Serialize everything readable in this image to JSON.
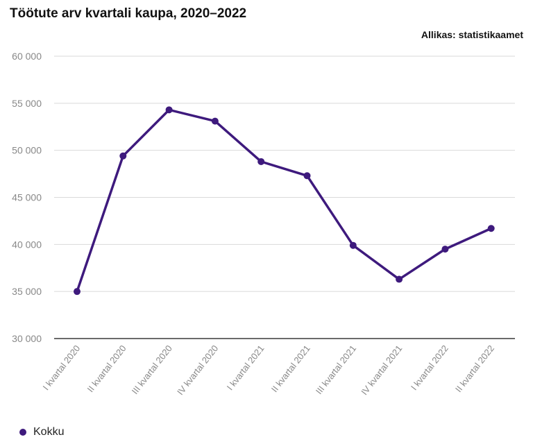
{
  "header": {
    "title": "Töötute arv kvartali kaupa, 2020–2022",
    "source": "Allikas: statistikaamet"
  },
  "colors": {
    "series": "#3e1a7d",
    "grid": "#d9d9d9",
    "axis": "#111111",
    "tick_text": "#888888"
  },
  "legend": {
    "label": "Kokku",
    "icon": "circle-marker-icon"
  },
  "chart_data": {
    "type": "line",
    "title": "Töötute arv kvartali kaupa, 2020–2022",
    "xlabel": "",
    "ylabel": "",
    "categories": [
      "I kvartal 2020",
      "II kvartal 2020",
      "III kvartal 2020",
      "IV kvartal 2020",
      "I kvartal 2021",
      "II kvartal 2021",
      "III kvartal 2021",
      "IV kvartal 2021",
      "I kvartal 2022",
      "II kvartal 2022"
    ],
    "series": [
      {
        "name": "Kokku",
        "values": [
          35000,
          49400,
          54300,
          53100,
          48800,
          47300,
          39900,
          36300,
          39500,
          41700
        ]
      }
    ],
    "ylim": [
      30000,
      60000
    ],
    "yticks": [
      30000,
      35000,
      40000,
      45000,
      50000,
      55000,
      60000
    ],
    "ytick_labels": [
      "30 000",
      "35 000",
      "40 000",
      "45 000",
      "50 000",
      "55 000",
      "60 000"
    ],
    "grid": true,
    "legend_position": "bottom-left"
  }
}
